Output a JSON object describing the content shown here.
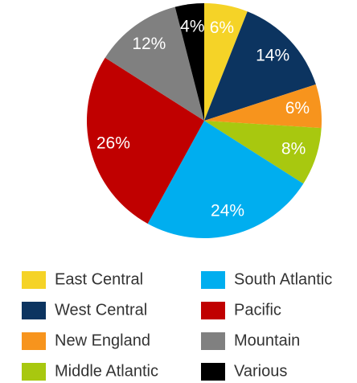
{
  "chart_data": {
    "type": "pie",
    "categories": [
      "East Central",
      "West Central",
      "New England",
      "Middle Atlantic",
      "South Atlantic",
      "Pacific",
      "Mountain",
      "Various"
    ],
    "values": [
      6,
      14,
      6,
      8,
      24,
      26,
      12,
      4
    ],
    "value_labels": [
      "6%",
      "14%",
      "6%",
      "8%",
      "24%",
      "26%",
      "12%",
      "4%"
    ],
    "colors": [
      "#f5d327",
      "#0c3460",
      "#f7941d",
      "#a8c80f",
      "#00aeef",
      "#c00000",
      "#808080",
      "#000000"
    ],
    "legend": "bottom"
  }
}
